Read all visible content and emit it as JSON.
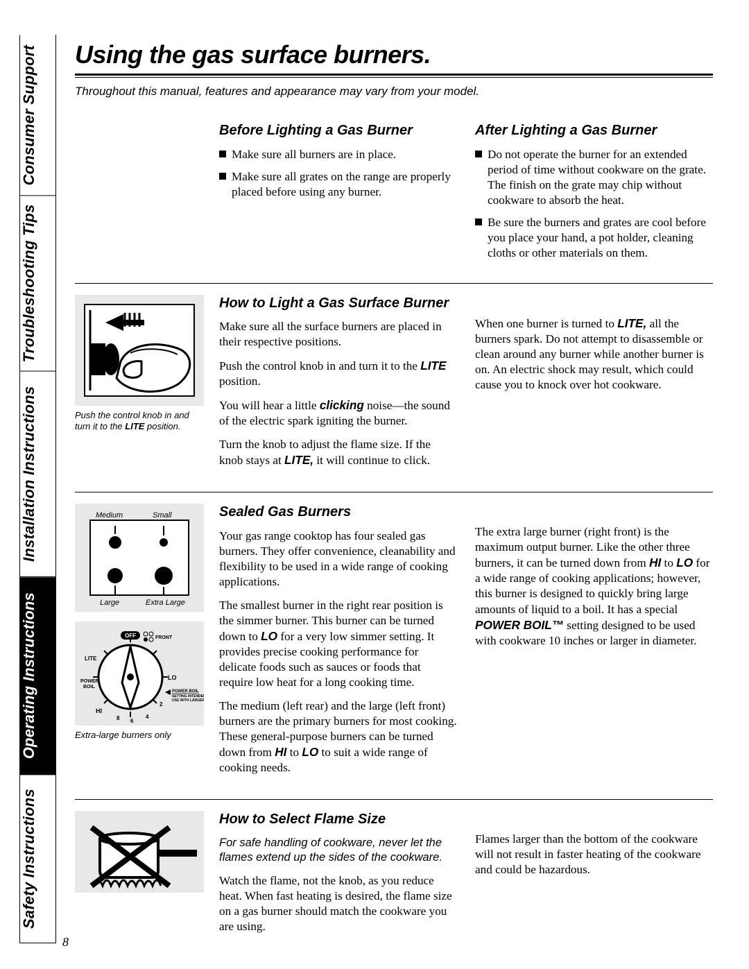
{
  "page_number": "8",
  "colors": {
    "bg": "#ffffff",
    "fg": "#000000",
    "figure_bg": "#e8e8e8",
    "tab_active_bg": "#000000",
    "tab_active_fg": "#ffffff"
  },
  "fonts": {
    "heading_family": "Helvetica Neue Condensed",
    "body_family": "Baskerville",
    "heading_style": "bold italic",
    "caption_size_pt": 9,
    "body_size_pt": 12,
    "h1_size_pt": 27,
    "h2_size_pt": 15
  },
  "side_tabs": [
    {
      "label": "Safety Instructions",
      "active": false
    },
    {
      "label": "Operating Instructions",
      "active": true
    },
    {
      "label": "Installation Instructions",
      "active": false
    },
    {
      "label": "Troubleshooting Tips",
      "active": false
    },
    {
      "label": "Consumer Support",
      "active": false
    }
  ],
  "title": "Using the gas surface burners.",
  "intro": "Throughout this manual, features and appearance may vary from your model.",
  "sections": {
    "before_after": {
      "before_heading": "Before Lighting a Gas Burner",
      "before_items": [
        "Make sure all burners are in place.",
        "Make sure all grates on the range are properly placed before using any burner."
      ],
      "after_heading": "After Lighting a Gas Burner",
      "after_items": [
        "Do not operate the burner for an extended period of time without cookware on the grate. The finish on the grate may chip without cookware to absorb the heat.",
        "Be sure the burners and grates are cool before you place your hand, a pot holder, cleaning cloths or other materials on them."
      ]
    },
    "how_to_light": {
      "heading": "How to Light a Gas Surface Burner",
      "caption_pre": "Push the control knob in and turn it to the ",
      "caption_bold": "LITE",
      "caption_post": " position.",
      "left_paras": [
        "Make sure all the surface burners are placed in their respective positions.",
        "Push the control knob in and turn it to the <b>LITE</b> position.",
        "You will hear a little <b>clicking</b> noise—the sound of the electric spark igniting the burner.",
        "Turn the knob to adjust the flame size. If the knob stays at <b>LITE,</b> it will continue to click."
      ],
      "right_paras": [
        "When one burner is turned to <b>LITE,</b> all the burners spark. Do not attempt to disassemble or clean around any burner while another burner is on. An electric shock may result, which could cause you to knock over hot cookware."
      ]
    },
    "sealed": {
      "heading": "Sealed Gas Burners",
      "burner_labels": {
        "tl": "Medium",
        "tr": "Small",
        "bl": "Large",
        "br": "Extra Large"
      },
      "knob_labels": {
        "off": "OFF",
        "front": "FRONT",
        "lite": "LITE",
        "power_boil": "POWER BOIL",
        "hi": "HI",
        "lo": "LO",
        "note1": "POWER BOIL",
        "note2": "SETTING INTENDED FOR USE WITH LARGER POTS",
        "ticks": [
          "8",
          "6",
          "4",
          "2"
        ]
      },
      "caption": "Extra-large burners only",
      "left_paras": [
        "Your gas range cooktop has four sealed gas burners. They offer convenience, cleanability and flexibility to be used in a wide range of cooking applications.",
        "The smallest burner in the right rear position is the simmer burner. This burner can be turned down to <b>LO</b> for a very low simmer setting. It provides precise cooking performance for delicate foods such as sauces or foods that require low heat for a long cooking time.",
        "The medium (left rear) and the large (left front) burners are the primary burners for most cooking. These general-purpose burners can be turned down from <b>HI</b> to <b>LO</b> to suit a wide range of cooking needs."
      ],
      "right_paras": [
        "The extra large burner (right front) is the maximum output burner. Like the other three burners, it can be turned down from <b>HI</b> to <b>LO</b> for a wide range of cooking applications; however, this burner is designed to quickly bring large amounts of liquid to a boil. It has a special <b>POWER BOIL™</b> setting designed to be used with cookware 10 inches or larger in diameter."
      ]
    },
    "flame": {
      "heading": "How to Select Flame Size",
      "ital_note": "For safe handling of cookware, never let the flames extend up the sides of the cookware.",
      "left_paras": [
        "Watch the flame, not the knob, as you reduce heat. When fast heating is desired, the flame size on a gas burner should match the cookware you are using."
      ],
      "right_paras": [
        "Flames larger than the bottom of the cookware will not result in faster heating of the cookware and could be hazardous."
      ]
    }
  }
}
